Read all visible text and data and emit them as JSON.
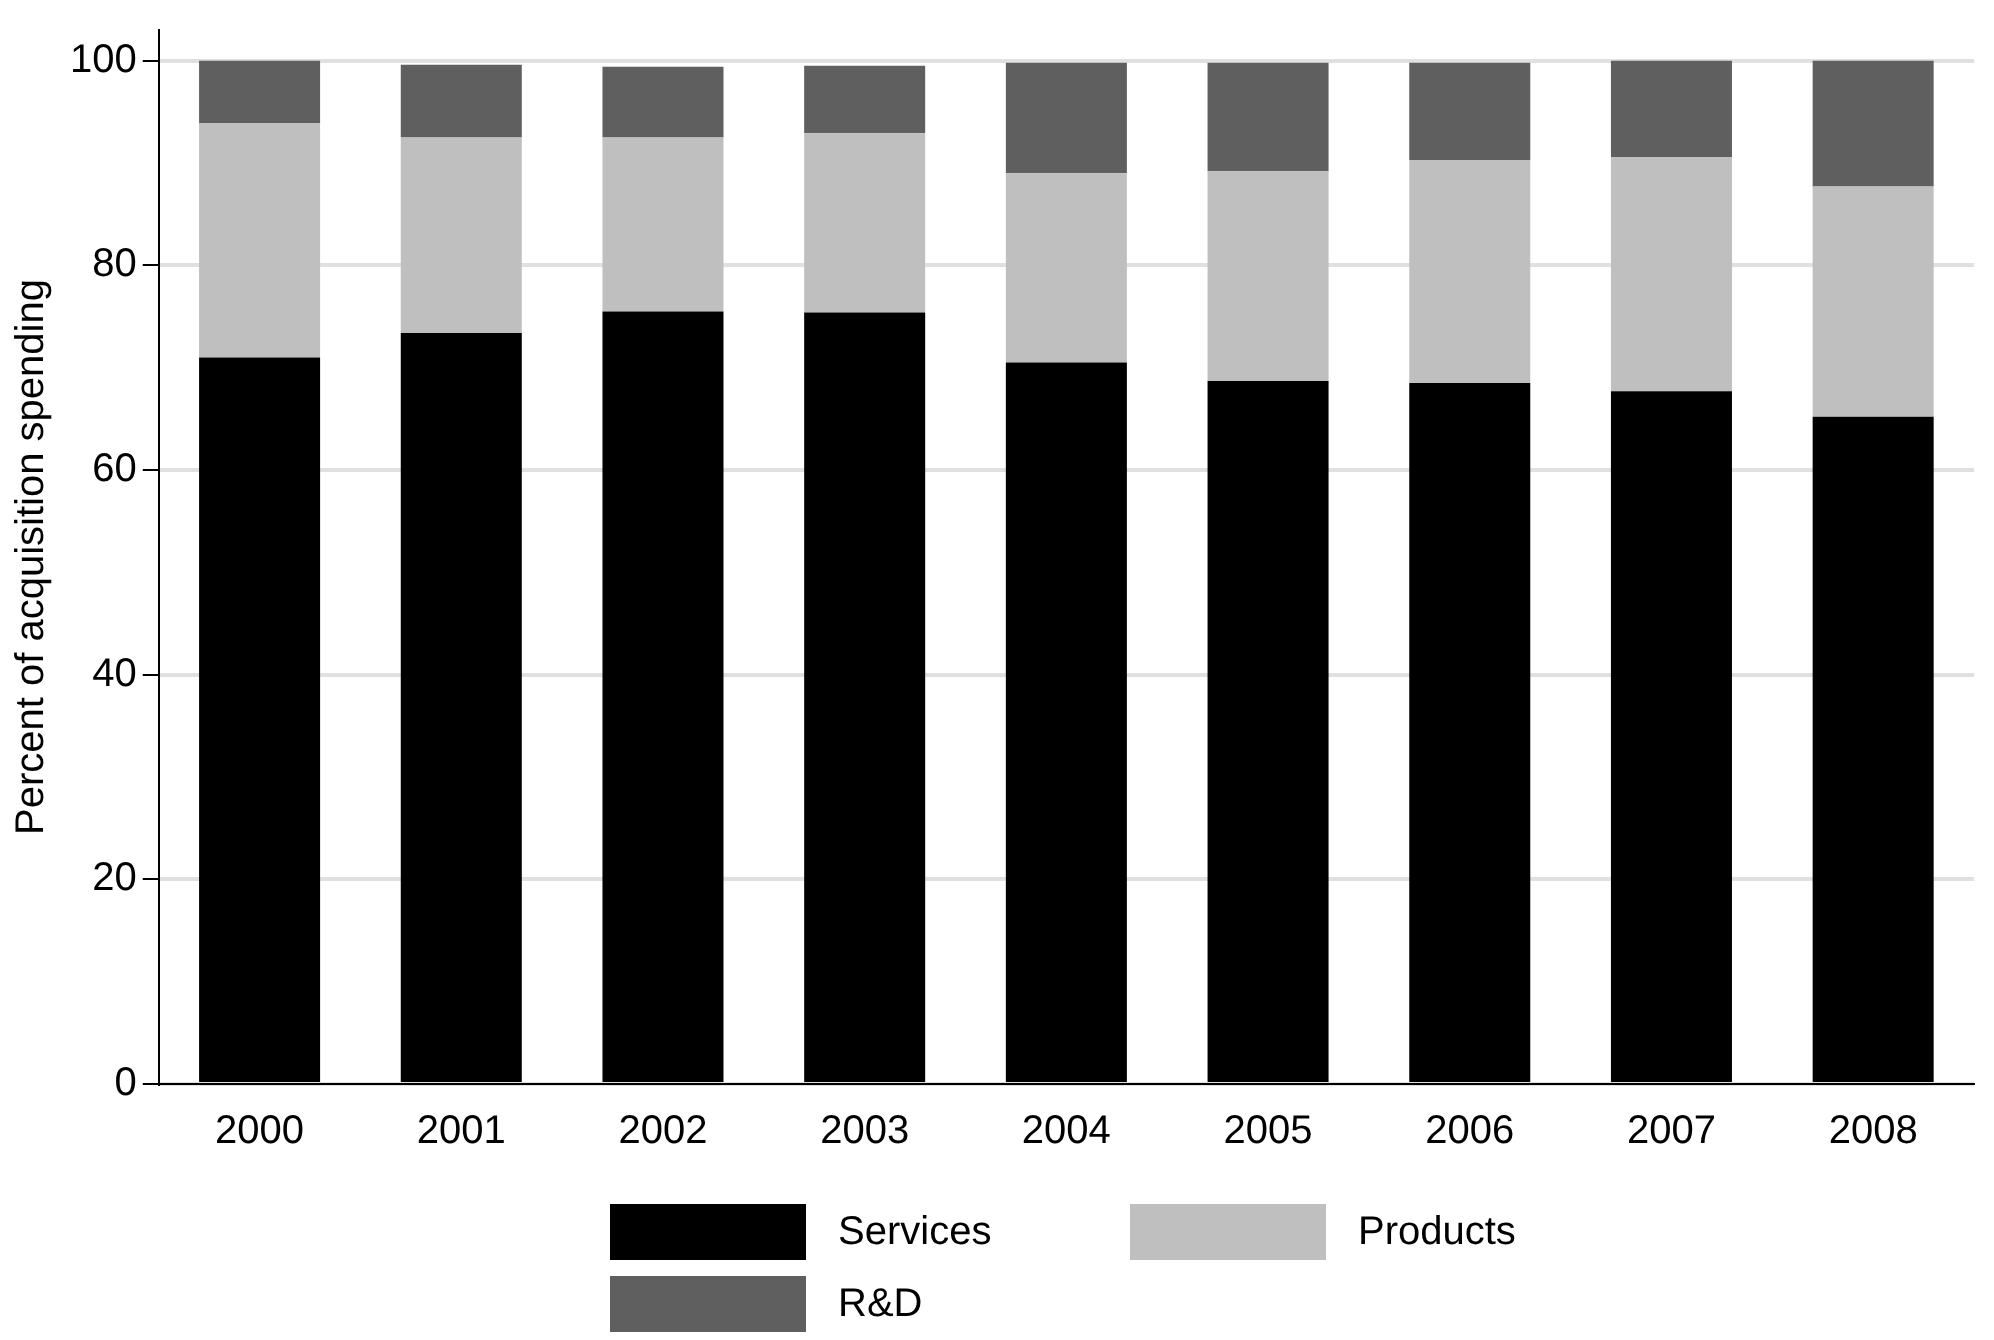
{
  "chart_data": {
    "type": "bar",
    "ylabel": "Percent of acquisition spending",
    "stacked": true,
    "categories": [
      "2000",
      "2001",
      "2002",
      "2003",
      "2004",
      "2005",
      "2006",
      "2007",
      "2008"
    ],
    "series": [
      {
        "name": "Services",
        "color": "#000000",
        "values": [
          71.0,
          73.4,
          75.5,
          75.4,
          70.5,
          68.7,
          68.5,
          67.7,
          65.2
        ]
      },
      {
        "name": "Products",
        "color": "#bfbfbf",
        "values": [
          22.9,
          19.1,
          17.0,
          17.5,
          18.5,
          20.5,
          21.8,
          22.9,
          22.5
        ]
      },
      {
        "name": "R&D",
        "color": "#5f5f5f",
        "values": [
          6.1,
          7.1,
          6.9,
          6.6,
          10.8,
          10.6,
          9.5,
          9.4,
          12.3
        ]
      }
    ],
    "ylim": [
      0,
      103
    ],
    "yticks": [
      0,
      20,
      40,
      60,
      80,
      100
    ],
    "grid": "y",
    "legend": "bottom"
  }
}
